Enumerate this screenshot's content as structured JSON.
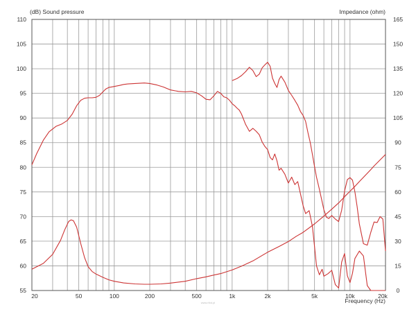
{
  "chart_data": {
    "type": "line",
    "title": "",
    "left_axis_label": "(dB)  Sound pressure",
    "right_axis_label": "Impedance  (ohm)",
    "xlabel": "Frequency  (Hz)",
    "xscale": "log",
    "xlim": [
      20,
      20000
    ],
    "ylim_left": [
      55,
      110
    ],
    "ylim_right": [
      0,
      165
    ],
    "grid": true,
    "x_tick_labels": [
      "20",
      "50",
      "100",
      "200",
      "500",
      "1k",
      "2k",
      "5k",
      "10k",
      "20k"
    ],
    "x_tick_values": [
      20,
      50,
      100,
      200,
      500,
      1000,
      2000,
      5000,
      10000,
      20000
    ],
    "y_left_ticks": [
      55,
      60,
      65,
      70,
      75,
      80,
      85,
      90,
      95,
      100,
      105,
      110
    ],
    "y_right_ticks": [
      0,
      15,
      30,
      45,
      60,
      75,
      90,
      105,
      120,
      135,
      150,
      165
    ],
    "line_color": "#cc3333",
    "watermark": "www.ribd.pl",
    "series": [
      {
        "axis": "left",
        "x": [
          20,
          22,
          25,
          28,
          32,
          36,
          40,
          44,
          48,
          52,
          56,
          60,
          65,
          70,
          75,
          80,
          85,
          90,
          95,
          100,
          110,
          120,
          130,
          150,
          180,
          200,
          230,
          260,
          300,
          350,
          400,
          450,
          500,
          550,
          600,
          650,
          700,
          750,
          800,
          850,
          900,
          950,
          1000,
          1050,
          1100,
          1150,
          1200,
          1300,
          1400,
          1500,
          1600,
          1700,
          1800,
          1900,
          2000,
          2100,
          2200,
          2300,
          2400,
          2500,
          2600,
          2800,
          3000,
          3200,
          3400,
          3600,
          3800,
          4000,
          4200,
          4500,
          4800,
          5000,
          5200,
          5500,
          5800,
          6000,
          6500,
          7000,
          7500,
          8000,
          8500,
          9000,
          9500,
          10000,
          10500,
          11000,
          12000,
          13000,
          14000,
          15000,
          16000,
          17000,
          18000,
          19000,
          20000
        ],
        "y": [
          80.5,
          82.8,
          85.5,
          87.2,
          88.3,
          88.8,
          89.5,
          90.8,
          92.5,
          93.6,
          94.0,
          94.1,
          94.1,
          94.2,
          94.6,
          95.3,
          95.9,
          96.2,
          96.3,
          96.4,
          96.6,
          96.8,
          96.9,
          97.0,
          97.1,
          97.0,
          96.7,
          96.3,
          95.7,
          95.4,
          95.3,
          95.4,
          95.1,
          94.5,
          93.8,
          93.7,
          94.5,
          95.4,
          95.0,
          94.3,
          94.1,
          93.6,
          92.9,
          92.5,
          92.0,
          91.6,
          90.8,
          88.7,
          87.3,
          87.9,
          87.3,
          86.6,
          85.1,
          84.2,
          83.6,
          82.0,
          81.5,
          82.7,
          81.3,
          79.4,
          79.8,
          78.6,
          76.8,
          78.0,
          76.5,
          77.1,
          74.6,
          72.2,
          70.6,
          71.2,
          68.0,
          64.0,
          60.0,
          58.2,
          59.3,
          57.9,
          58.4,
          59.1,
          56.2,
          55.5,
          60.8,
          62.5,
          58.0,
          56.6,
          58.5,
          61.5,
          63.0,
          62.0,
          56.0,
          55.0,
          55.0,
          55.0,
          55.0,
          55.0,
          55.0
        ]
      },
      {
        "axis": "left",
        "x": [
          1000,
          1100,
          1200,
          1300,
          1400,
          1500,
          1600,
          1700,
          1800,
          1900,
          2000,
          2100,
          2200,
          2300,
          2400,
          2500,
          2600,
          2800,
          3000,
          3200,
          3400,
          3600,
          3800,
          4000,
          4200,
          4400,
          4600,
          4800,
          5000,
          5200,
          5500,
          5800,
          6000,
          6300,
          6600,
          7000,
          7500,
          8000,
          8500,
          9000,
          9500,
          10000,
          10500,
          11000,
          11500,
          12000,
          13000,
          14000,
          15000,
          16000,
          17000,
          18000,
          19000,
          20000
        ],
        "y": [
          97.6,
          98.0,
          98.6,
          99.4,
          100.3,
          99.6,
          98.4,
          98.9,
          100.2,
          100.8,
          101.3,
          100.5,
          98.1,
          97.0,
          96.2,
          97.8,
          98.5,
          97.3,
          95.6,
          94.6,
          93.6,
          92.6,
          91.3,
          90.5,
          89.3,
          87.0,
          85.0,
          82.6,
          80.2,
          78.0,
          75.5,
          73.0,
          71.4,
          69.9,
          69.6,
          70.2,
          69.5,
          69.0,
          71.3,
          75.2,
          77.5,
          77.9,
          77.4,
          75.0,
          72.0,
          68.5,
          64.5,
          64.2,
          66.8,
          68.9,
          68.8,
          70.0,
          69.5,
          63.0
        ]
      },
      {
        "axis": "right",
        "x": [
          20,
          25,
          30,
          35,
          38,
          41,
          43,
          45,
          48,
          52,
          56,
          60,
          65,
          70,
          80,
          90,
          100,
          120,
          150,
          180,
          200,
          250,
          300,
          400,
          500,
          600,
          700,
          800,
          1000,
          1200,
          1500,
          2000,
          2500,
          3000,
          3500,
          4000,
          5000,
          6000,
          7000,
          8000,
          9000,
          10000,
          11000,
          12000,
          13000,
          14000,
          15000,
          16000,
          17000,
          18000,
          19000,
          20000
        ],
        "y": [
          13.0,
          16.5,
          22.0,
          30.5,
          37.0,
          42.0,
          43.0,
          42.5,
          38.5,
          28.5,
          20.0,
          14.5,
          11.5,
          10.0,
          8.0,
          6.5,
          5.6,
          4.6,
          4.0,
          3.8,
          3.8,
          4.0,
          4.5,
          5.6,
          7.2,
          8.3,
          9.4,
          10.3,
          12.5,
          14.8,
          18.0,
          23.3,
          26.8,
          29.8,
          33.0,
          35.4,
          40.5,
          45.3,
          49.5,
          53.3,
          57.1,
          60.4,
          63.4,
          66.3,
          68.9,
          71.3,
          73.6,
          75.8,
          77.7,
          79.5,
          81.2,
          82.8
        ]
      }
    ]
  }
}
